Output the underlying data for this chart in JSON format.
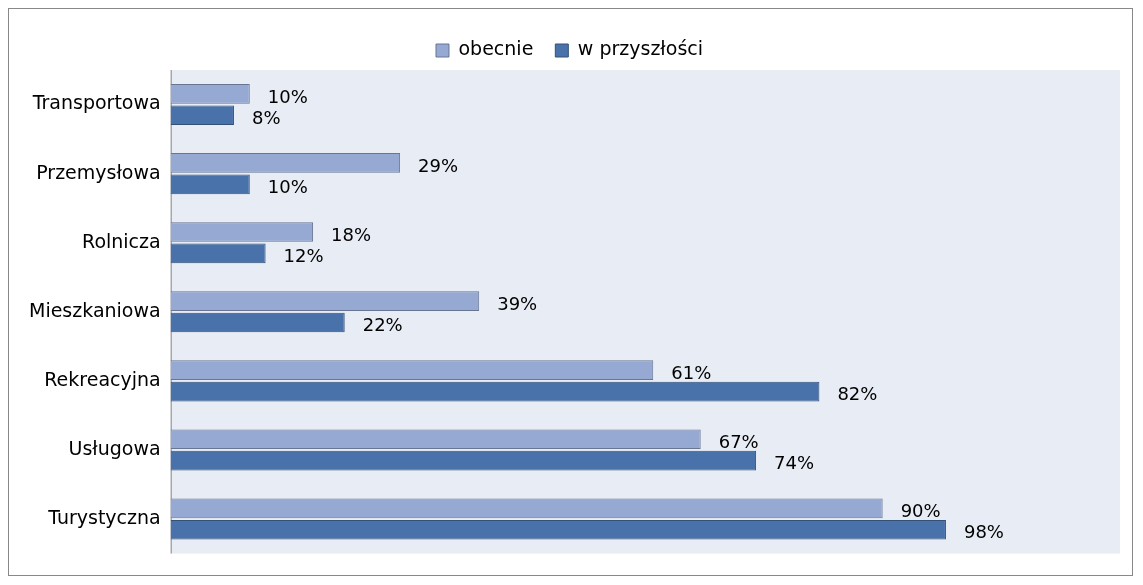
{
  "chart_data": {
    "type": "bar",
    "orientation": "horizontal",
    "categories": [
      "Transportowa",
      "Przemysłowa",
      "Rolnicza",
      "Mieszkaniowa",
      "Rekreacyjna",
      "Usługowa",
      "Turystyczna"
    ],
    "series": [
      {
        "name": "obecnie",
        "color": "#95a9d3",
        "values": [
          10,
          29,
          18,
          39,
          61,
          67,
          90
        ],
        "value_labels": [
          "10%",
          "29%",
          "18%",
          "39%",
          "61%",
          "67%",
          "90%"
        ]
      },
      {
        "name": "w przyszłości",
        "color": "#4a72aa",
        "values": [
          8,
          10,
          12,
          22,
          82,
          74,
          98
        ],
        "value_labels": [
          "8%",
          "10%",
          "12%",
          "22%",
          "82%",
          "74%",
          "98%"
        ]
      }
    ],
    "xlim": [
      0,
      120
    ],
    "tick_labels": "y",
    "legend": "top"
  }
}
